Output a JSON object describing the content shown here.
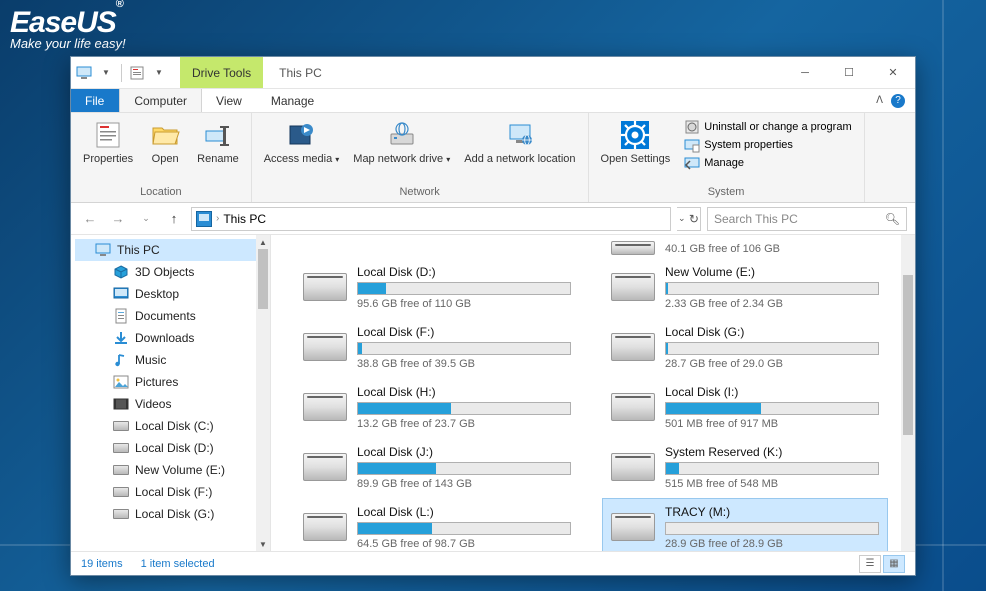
{
  "brand": {
    "name": "EaseUS",
    "reg": "®",
    "tagline": "Make your life easy!"
  },
  "window": {
    "context_tab": "Drive Tools",
    "title": "This PC",
    "tabs": {
      "file": "File",
      "computer": "Computer",
      "view": "View",
      "manage": "Manage"
    }
  },
  "ribbon": {
    "location": {
      "label": "Location",
      "properties": "Properties",
      "open": "Open",
      "rename": "Rename"
    },
    "network": {
      "label": "Network",
      "access_media": "Access media",
      "map_drive": "Map network drive",
      "add_loc": "Add a network location"
    },
    "settings": {
      "open_settings": "Open Settings"
    },
    "system": {
      "label": "System",
      "uninstall": "Uninstall or change a program",
      "sysprops": "System properties",
      "manage": "Manage"
    }
  },
  "address": {
    "path": "This PC",
    "search_placeholder": "Search This PC"
  },
  "navpane": {
    "this_pc": "This PC",
    "items": [
      {
        "label": "3D Objects",
        "icon": "cube",
        "color": "#26a0da"
      },
      {
        "label": "Desktop",
        "icon": "desktop",
        "color": "#2a8dd4"
      },
      {
        "label": "Documents",
        "icon": "doc",
        "color": "#5aa9dd"
      },
      {
        "label": "Downloads",
        "icon": "download",
        "color": "#2a8dd4"
      },
      {
        "label": "Music",
        "icon": "music",
        "color": "#2a8dd4"
      },
      {
        "label": "Pictures",
        "icon": "pic",
        "color": "#4aa3d8"
      },
      {
        "label": "Videos",
        "icon": "video",
        "color": "#555"
      },
      {
        "label": "Local Disk (C:)",
        "icon": "drive"
      },
      {
        "label": "Local Disk (D:)",
        "icon": "drive"
      },
      {
        "label": "New Volume (E:)",
        "icon": "drive"
      },
      {
        "label": "Local Disk (F:)",
        "icon": "drive"
      },
      {
        "label": "Local Disk (G:)",
        "icon": "drive"
      }
    ]
  },
  "partial": {
    "free": "40.1 GB free of 106 GB"
  },
  "drives": [
    {
      "name": "Local Disk (D:)",
      "free": "95.6 GB free of 110 GB",
      "pct": 13,
      "color": "#26a0da"
    },
    {
      "name": "New Volume (E:)",
      "free": "2.33 GB free of 2.34 GB",
      "pct": 1,
      "color": "#26a0da"
    },
    {
      "name": "Local Disk (F:)",
      "free": "38.8 GB free of 39.5 GB",
      "pct": 2,
      "color": "#26a0da"
    },
    {
      "name": "Local Disk (G:)",
      "free": "28.7 GB free of 29.0 GB",
      "pct": 1,
      "color": "#26a0da"
    },
    {
      "name": "Local Disk (H:)",
      "free": "13.2 GB free of 23.7 GB",
      "pct": 44,
      "color": "#26a0da"
    },
    {
      "name": "Local Disk (I:)",
      "free": "501 MB free of 917 MB",
      "pct": 45,
      "color": "#26a0da"
    },
    {
      "name": "Local Disk (J:)",
      "free": "89.9 GB free of 143 GB",
      "pct": 37,
      "color": "#26a0da"
    },
    {
      "name": "System Reserved (K:)",
      "free": "515 MB free of 548 MB",
      "pct": 6,
      "color": "#26a0da"
    },
    {
      "name": "Local Disk (L:)",
      "free": "64.5 GB free of 98.7 GB",
      "pct": 35,
      "color": "#26a0da"
    },
    {
      "name": "TRACY (M:)",
      "free": "28.9 GB free of 28.9 GB",
      "pct": 0,
      "color": "#26a0da",
      "selected": true
    }
  ],
  "status": {
    "count": "19 items",
    "selected": "1 item selected"
  }
}
